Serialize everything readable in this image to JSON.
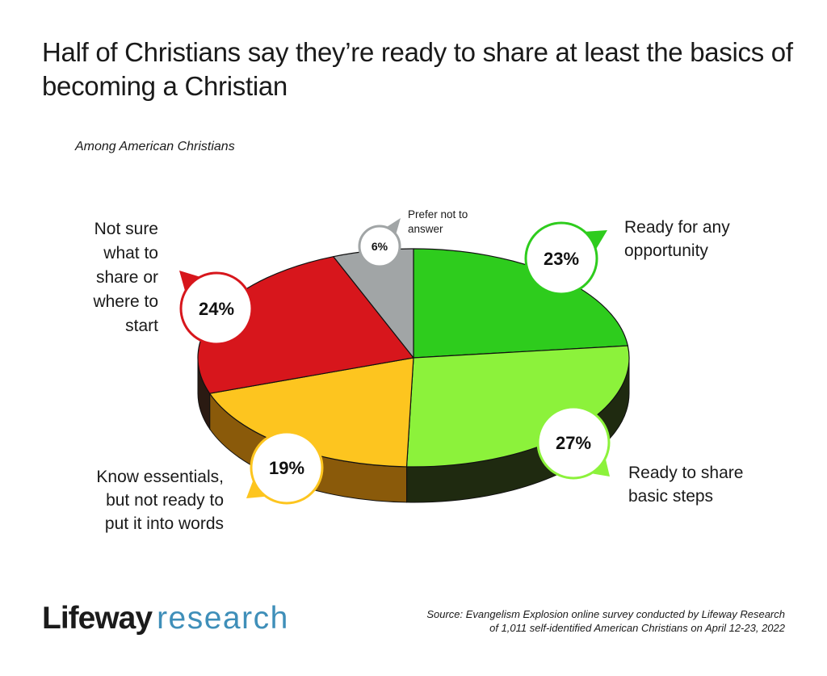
{
  "chart_data": {
    "type": "pie",
    "title": "Half of Christians say they’re ready to share at least the basics of becoming a Christian",
    "subtitle": "Among American Christians",
    "slices": [
      {
        "label": "Ready for any opportunity",
        "value": 23,
        "display": "23%",
        "color": "#2ecc1d",
        "side_color": "#1f2a10"
      },
      {
        "label": "Ready to share basic steps",
        "value": 27,
        "display": "27%",
        "color": "#8cf23b",
        "side_color": "#1f2a10"
      },
      {
        "label": "Know essentials, but not ready to put it into words",
        "value": 19,
        "display": "19%",
        "color": "#fdc51f",
        "side_color": "#8a5a0a"
      },
      {
        "label": "Not sure what to share or where to start",
        "value": 24,
        "display": "24%",
        "color": "#d7161c",
        "side_color": "#2a1a12"
      },
      {
        "label": "Prefer not to answer",
        "value": 6,
        "display": "6%",
        "color": "#a1a5a6",
        "side_color": "#3a3d3e"
      }
    ],
    "label_lines": [
      [
        "Ready for any",
        "opportunity"
      ],
      [
        "Ready to share",
        "basic steps"
      ],
      [
        "Know essentials,",
        "but not ready to",
        "put it into words"
      ],
      [
        "Not sure",
        "what  to",
        "share or",
        "where to",
        "start"
      ],
      [
        "Prefer not to",
        "answer"
      ]
    ]
  },
  "footer": {
    "brand_main": "Lifeway",
    "brand_sub": "research",
    "source_line1": "Source: Evangelism Explosion online survey conducted by Lifeway Research",
    "source_line2": "of 1,011 self-identified American Christians on April 12-23, 2022"
  }
}
